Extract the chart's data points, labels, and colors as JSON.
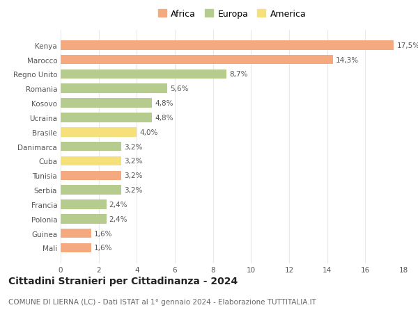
{
  "categories": [
    "Kenya",
    "Marocco",
    "Regno Unito",
    "Romania",
    "Kosovo",
    "Ucraina",
    "Brasile",
    "Danimarca",
    "Cuba",
    "Tunisia",
    "Serbia",
    "Francia",
    "Polonia",
    "Guinea",
    "Mali"
  ],
  "values": [
    17.5,
    14.3,
    8.7,
    5.6,
    4.8,
    4.8,
    4.0,
    3.2,
    3.2,
    3.2,
    3.2,
    2.4,
    2.4,
    1.6,
    1.6
  ],
  "labels": [
    "17,5%",
    "14,3%",
    "8,7%",
    "5,6%",
    "4,8%",
    "4,8%",
    "4,0%",
    "3,2%",
    "3,2%",
    "3,2%",
    "3,2%",
    "2,4%",
    "2,4%",
    "1,6%",
    "1,6%"
  ],
  "colors": [
    "#f4a97f",
    "#f4a97f",
    "#b5cc8e",
    "#b5cc8e",
    "#b5cc8e",
    "#b5cc8e",
    "#f5e07a",
    "#b5cc8e",
    "#f5e07a",
    "#f4a97f",
    "#b5cc8e",
    "#b5cc8e",
    "#b5cc8e",
    "#f4a97f",
    "#f4a97f"
  ],
  "legend": [
    {
      "label": "Africa",
      "color": "#f4a97f"
    },
    {
      "label": "Europa",
      "color": "#b5cc8e"
    },
    {
      "label": "America",
      "color": "#f5e07a"
    }
  ],
  "title": "Cittadini Stranieri per Cittadinanza - 2024",
  "subtitle": "COMUNE DI LIERNA (LC) - Dati ISTAT al 1° gennaio 2024 - Elaborazione TUTTITALIA.IT",
  "xlim": [
    0,
    18
  ],
  "xticks": [
    0,
    2,
    4,
    6,
    8,
    10,
    12,
    14,
    16,
    18
  ],
  "background_color": "#ffffff",
  "grid_color": "#e8e8e8",
  "bar_height": 0.65,
  "label_fontsize": 7.5,
  "tick_fontsize": 7.5,
  "ytick_fontsize": 7.5,
  "title_fontsize": 10,
  "subtitle_fontsize": 7.5,
  "legend_fontsize": 9
}
